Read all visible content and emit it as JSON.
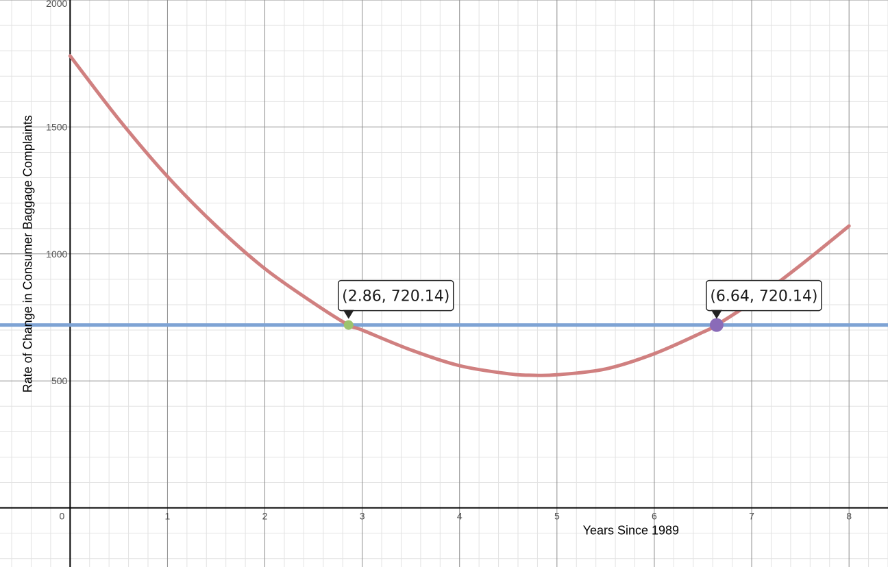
{
  "chart_data": {
    "type": "line",
    "xlabel": "Years Since 1989",
    "ylabel": "Rate of Change in Consumer Baggage Complaints",
    "x_ticks": [
      0,
      1,
      2,
      3,
      4,
      5,
      6,
      7,
      8
    ],
    "y_ticks": [
      500,
      1000,
      1500,
      2000
    ],
    "xlim": [
      -0.72,
      8.4
    ],
    "ylim": [
      -233,
      2000
    ],
    "grid": true,
    "curve": {
      "color": "#d08080",
      "domain": [
        0,
        8
      ],
      "points": [
        {
          "x": 0,
          "y": 1780
        },
        {
          "x": 0.5,
          "y": 1530
        },
        {
          "x": 1,
          "y": 1305
        },
        {
          "x": 1.5,
          "y": 1110
        },
        {
          "x": 2,
          "y": 942
        },
        {
          "x": 2.5,
          "y": 807
        },
        {
          "x": 2.86,
          "y": 720.14
        },
        {
          "x": 3,
          "y": 700
        },
        {
          "x": 3.5,
          "y": 622
        },
        {
          "x": 4,
          "y": 560
        },
        {
          "x": 4.5,
          "y": 528
        },
        {
          "x": 4.75,
          "y": 522
        },
        {
          "x": 5,
          "y": 524
        },
        {
          "x": 5.5,
          "y": 547
        },
        {
          "x": 6,
          "y": 607
        },
        {
          "x": 6.5,
          "y": 692
        },
        {
          "x": 6.64,
          "y": 720.14
        },
        {
          "x": 7,
          "y": 810
        },
        {
          "x": 7.5,
          "y": 955
        },
        {
          "x": 8,
          "y": 1110
        }
      ]
    },
    "horizontal_line": {
      "y": 720.14,
      "color": "#7ea3d4"
    },
    "marked_points": [
      {
        "x": 2.86,
        "y": 720.14,
        "label": "(2.86, 720.14)",
        "color": "#9cc36e"
      },
      {
        "x": 6.64,
        "y": 720.14,
        "label": "(6.64, 720.14)",
        "color": "#8a6bb8"
      }
    ]
  }
}
